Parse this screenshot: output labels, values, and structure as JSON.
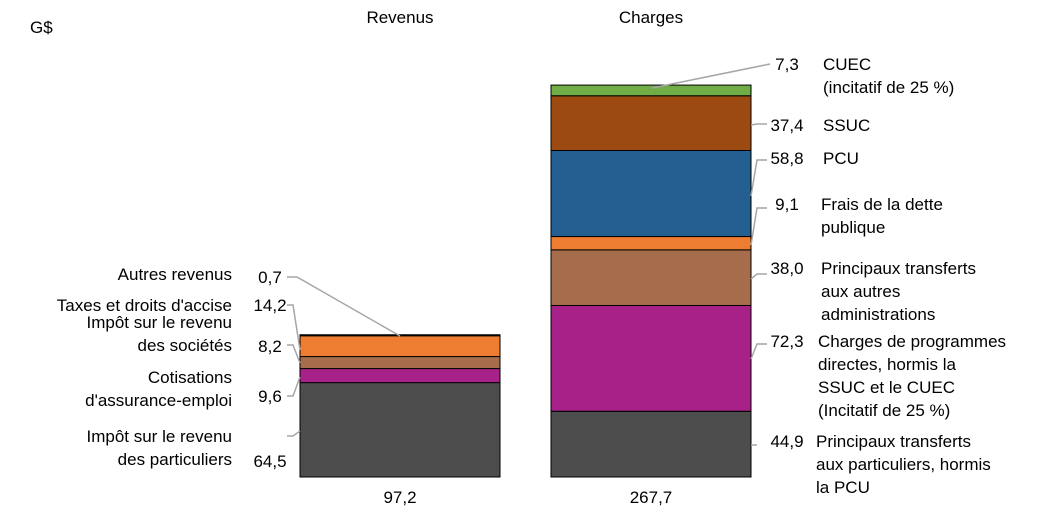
{
  "chart_data": {
    "type": "bar",
    "stacked": true,
    "unit_label": "G$",
    "categories": [
      "Revenus",
      "Charges"
    ],
    "totals": [
      "97,2",
      "267,7"
    ],
    "stacks": [
      {
        "category": "Revenus",
        "segments": [
          {
            "value": 64.5,
            "value_label": "64,5",
            "label": [
              "Impôt sur le revenu",
              "des particuliers"
            ],
            "color": "#4d4d4d"
          },
          {
            "value": 9.6,
            "value_label": "9,6",
            "label": [
              "Cotisations",
              "d'assurance-emploi"
            ],
            "color": "#a82188"
          },
          {
            "value": 8.2,
            "value_label": "8,2",
            "label": [
              "Impôt sur le revenu",
              "des sociétés"
            ],
            "color": "#a56d4b"
          },
          {
            "value": 14.2,
            "value_label": "14,2",
            "label": [
              "Taxes et droits d'accise"
            ],
            "color": "#ee7d31"
          },
          {
            "value": 0.7,
            "value_label": "0,7",
            "label": [
              "Autres revenus"
            ],
            "color": "#ee7d31"
          }
        ]
      },
      {
        "category": "Charges",
        "segments": [
          {
            "value": 44.9,
            "value_label": "44,9",
            "label": [
              "Principaux transferts",
              "aux particuliers, hormis",
              "la PCU"
            ],
            "color": "#4d4d4d"
          },
          {
            "value": 72.3,
            "value_label": "72,3",
            "label": [
              "Charges de programmes",
              "directes, hormis la",
              "SSUC et le CUEC",
              "(Incitatif de 25 %)"
            ],
            "color": "#a82188"
          },
          {
            "value": 38.0,
            "value_label": "38,0",
            "label": [
              "Principaux transferts",
              "aux autres",
              "administrations"
            ],
            "color": "#a56d4b"
          },
          {
            "value": 9.1,
            "value_label": "9,1",
            "label": [
              "Frais de la dette",
              "publique"
            ],
            "color": "#ee7d31"
          },
          {
            "value": 58.8,
            "value_label": "58,8",
            "label": [
              "PCU"
            ],
            "color": "#255e91"
          },
          {
            "value": 37.4,
            "value_label": "37,4",
            "label": [
              "SSUC"
            ],
            "color": "#9c4a12"
          },
          {
            "value": 7.3,
            "value_label": "7,3",
            "label": [
              "CUEC",
              "(incitatif de 25 %)"
            ],
            "color": "#70ad47"
          }
        ]
      }
    ]
  }
}
